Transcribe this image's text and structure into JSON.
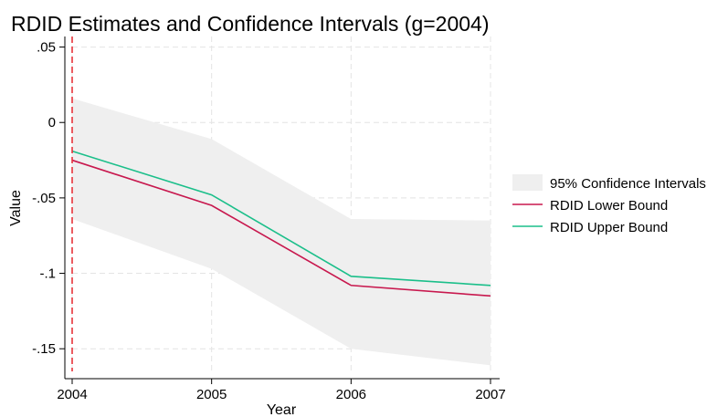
{
  "chart_data": {
    "type": "line",
    "title": "RDID Estimates and Confidence Intervals (g=2004)",
    "xlabel": "Year",
    "ylabel": "Value",
    "x": [
      2004,
      2005,
      2006,
      2007
    ],
    "x_tick_labels": [
      "2004",
      "2005",
      "2006",
      "2007"
    ],
    "y_ticks": [
      0.05,
      0,
      -0.05,
      -0.1,
      -0.15
    ],
    "y_tick_labels": [
      ".05",
      "0",
      "-.05",
      "-.1",
      "-.15"
    ],
    "xlim": [
      2004,
      2007
    ],
    "ylim": [
      -0.165,
      0.057
    ],
    "grid": true,
    "legend_position": "right",
    "reference_line": {
      "x": 2004,
      "color": "#e8333a",
      "style": "dashed"
    },
    "confidence_band": {
      "name": "95% Confidence Intervals",
      "color": "#efefef",
      "lower": [
        -0.064,
        -0.097,
        -0.15,
        -0.161
      ],
      "upper": [
        0.016,
        -0.011,
        -0.064,
        -0.065
      ]
    },
    "series": [
      {
        "name": "RDID Lower Bound",
        "color": "#c8184e",
        "values": [
          -0.025,
          -0.055,
          -0.108,
          -0.115
        ]
      },
      {
        "name": "RDID Upper Bound",
        "color": "#1bbf8a",
        "values": [
          -0.019,
          -0.048,
          -0.102,
          -0.108
        ]
      }
    ]
  }
}
